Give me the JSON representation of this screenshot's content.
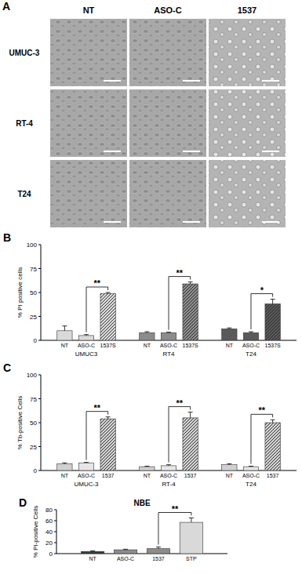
{
  "micrographs": {
    "label": "A",
    "columns": [
      "NT",
      "ASO-C",
      "1537"
    ],
    "rows": [
      "UMUC-3",
      "RT-4",
      "T24"
    ]
  },
  "chart_data": [
    {
      "type": "bar",
      "y_label": "% PI positive cells",
      "categories": [
        "NT",
        "ASO-C",
        "1537S",
        "NT",
        "ASO-C",
        "1537S",
        "NT",
        "ASO-C",
        "1537S"
      ],
      "groups": [
        "UMUC3",
        "RT4",
        "T24"
      ],
      "values": [
        10,
        5,
        49,
        8,
        8,
        59,
        12,
        8,
        38
      ],
      "errors": [
        5,
        1,
        1,
        1,
        0.5,
        2,
        1,
        1,
        5
      ],
      "colors": [
        "#d9d9d9",
        "#d9d9d9",
        "#d9d9d9",
        "#8c8c8c",
        "#8c8c8c",
        "#8c8c8c",
        "#5a5a5a",
        "#5a5a5a",
        "#5a5a5a"
      ],
      "ylim": [
        0,
        100
      ],
      "yticks": [
        0,
        25,
        50,
        75,
        100
      ],
      "annotations": [
        {
          "text": "B"
        },
        {
          "text": "**",
          "between": [
            1,
            2
          ]
        },
        {
          "text": "**",
          "between": [
            4,
            5
          ]
        },
        {
          "text": "*",
          "between": [
            7,
            8
          ]
        }
      ]
    },
    {
      "type": "bar",
      "y_label": "% Tb-positive Cells",
      "categories": [
        "NT",
        "ASO-C",
        "1537",
        "NT",
        "ASO-C",
        "1537",
        "NT",
        "ASO-C",
        "1537"
      ],
      "groups": [
        "UMUC-3",
        "RT-4",
        "T24"
      ],
      "values": [
        7,
        8,
        54,
        4,
        5,
        55,
        6,
        4,
        50
      ],
      "errors": [
        1,
        0.5,
        2,
        0.5,
        1,
        6,
        1,
        0.5,
        3
      ],
      "colors": [
        "#d0d0d0",
        "#e6e6e6",
        "#d0d0d0",
        "#d0d0d0",
        "#e6e6e6",
        "#d0d0d0",
        "#d0d0d0",
        "#e6e6e6",
        "#d0d0d0"
      ],
      "ylim": [
        0,
        100
      ],
      "yticks": [
        0,
        25,
        50,
        75,
        100
      ],
      "annotations": [
        {
          "text": "C"
        },
        {
          "text": "**",
          "between": [
            1,
            2
          ]
        },
        {
          "text": "**",
          "between": [
            4,
            5
          ]
        },
        {
          "text": "**",
          "between": [
            7,
            8
          ]
        }
      ]
    },
    {
      "type": "bar",
      "title": "NBE",
      "y_label": "% PI-positive Cells",
      "categories": [
        "NT",
        "ASO-C",
        "1537",
        "STP"
      ],
      "values": [
        4,
        7,
        9,
        57
      ],
      "errors": [
        1,
        1,
        3,
        8
      ],
      "colors": [
        "#3a3a3a",
        "#8c8c8c",
        "#8c8c8c",
        "#d9d9d9"
      ],
      "ylim": [
        0,
        80
      ],
      "yticks": [
        0,
        20,
        40,
        60,
        80
      ],
      "annotations": [
        {
          "text": "D"
        },
        {
          "text": "**",
          "between": [
            2,
            3
          ]
        }
      ]
    }
  ]
}
